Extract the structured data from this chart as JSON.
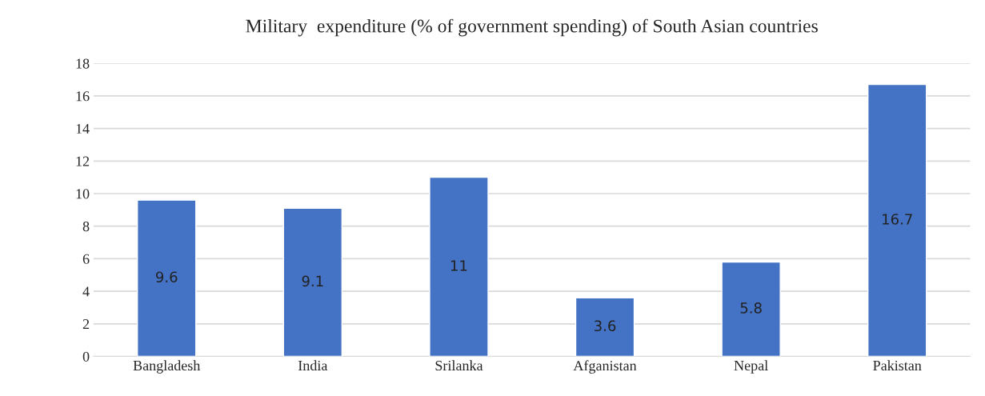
{
  "chart_data": {
    "type": "bar",
    "title": "Military  expenditure (% of government spending) of South Asian countries",
    "categories": [
      "Bangladesh",
      "India",
      "Srilanka",
      "Afganistan",
      "Nepal",
      "Pakistan"
    ],
    "values": [
      9.6,
      9.1,
      11,
      3.6,
      5.8,
      16.7
    ],
    "color": "#4472c4",
    "ylim": [
      0,
      18
    ],
    "yticks": [
      0,
      2,
      4,
      6,
      8,
      10,
      12,
      14,
      16,
      18
    ],
    "grid": "y",
    "data_labels": true
  }
}
